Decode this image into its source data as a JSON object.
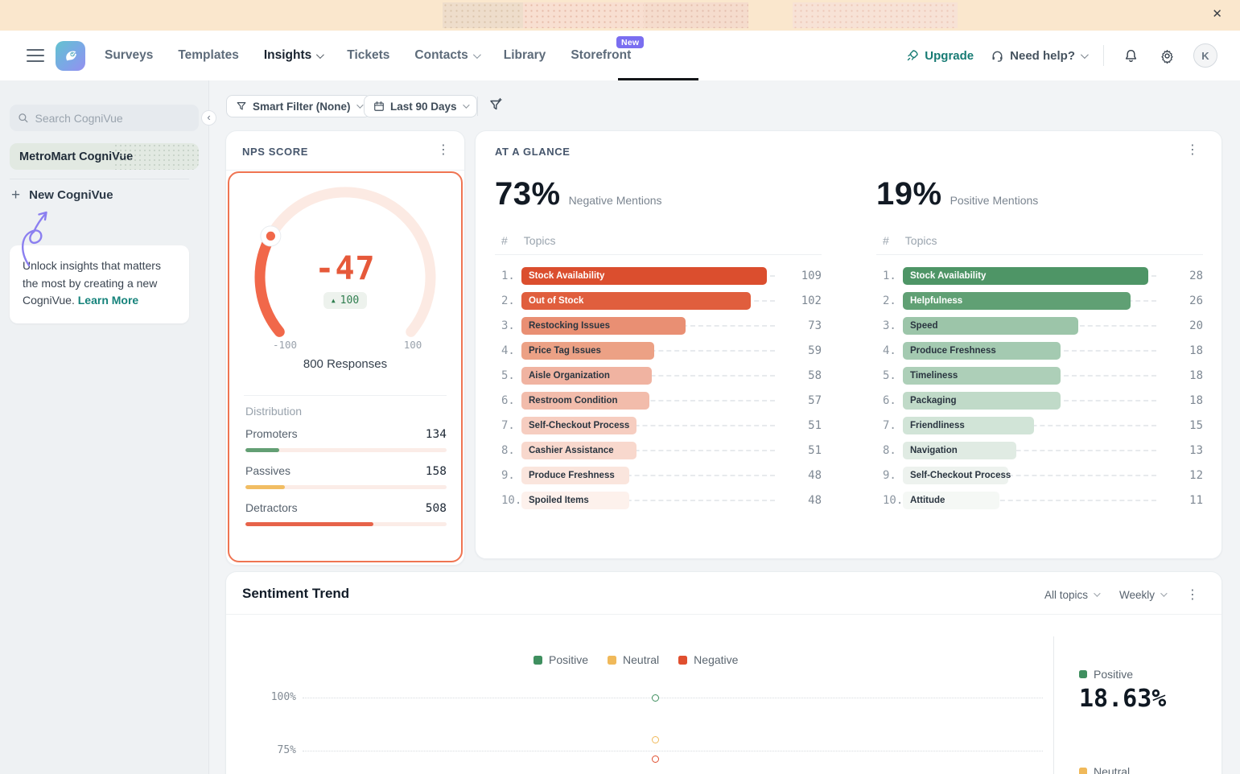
{
  "banner": {
    "dismiss_icon": "✕"
  },
  "icons": {
    "kebab": "⋮",
    "collapse": "‹",
    "plus": "+",
    "up_triangle": "▲"
  },
  "nav": {
    "items": [
      {
        "label": "Surveys"
      },
      {
        "label": "Templates"
      },
      {
        "label": "Insights",
        "active": true,
        "chevron": true
      },
      {
        "label": "Tickets"
      },
      {
        "label": "Contacts",
        "chevron": true
      },
      {
        "label": "Library"
      },
      {
        "label": "Storefront",
        "badge": "New"
      }
    ],
    "upgrade_label": "Upgrade",
    "need_help_label": "Need help?",
    "avatar_initial": "K"
  },
  "sidebar": {
    "search_placeholder": "Search CogniVue",
    "selected_item": "MetroMart CogniVue",
    "new_button": "New CogniVue",
    "promo_text": "Unlock insights that matters the most by creating a new CogniVue. ",
    "promo_link": "Learn More"
  },
  "filters": {
    "smart_filter": "Smart Filter (None)",
    "date_range": "Last 90 Days"
  },
  "nps": {
    "title": "NPS SCORE",
    "score": "-47",
    "change": "100",
    "min_label": "-100",
    "max_label": "100",
    "responses": "800 Responses",
    "distribution_title": "Distribution",
    "gauge_fill_color": "#f1684a",
    "gauge_track_color": "#fceae3",
    "distribution": [
      {
        "label": "Promoters",
        "count": "134",
        "pct": 16.75,
        "color": "#639f74"
      },
      {
        "label": "Passives",
        "count": "158",
        "pct": 19.75,
        "color": "#f1bd63"
      },
      {
        "label": "Detractors",
        "count": "508",
        "pct": 63.5,
        "color": "#e7634a"
      }
    ]
  },
  "glance": {
    "title": "AT A GLANCE",
    "negative": {
      "pct": "73%",
      "label": "Negative Mentions",
      "col_rank": "#",
      "col_topics": "Topics",
      "rows": [
        {
          "rank": "1.",
          "topic": "Stock Availability",
          "count": 109,
          "color": "#db4e2e",
          "light": true
        },
        {
          "rank": "2.",
          "topic": "Out of Stock",
          "count": 102,
          "color": "#e05e3d",
          "light": true
        },
        {
          "rank": "3.",
          "topic": "Restocking Issues",
          "count": 73,
          "color": "#e98f73"
        },
        {
          "rank": "4.",
          "topic": "Price Tag Issues",
          "count": 59,
          "color": "#eca185"
        },
        {
          "rank": "5.",
          "topic": "Aisle Organization",
          "count": 58,
          "color": "#f0b3a1"
        },
        {
          "rank": "6.",
          "topic": "Restroom Condition",
          "count": 57,
          "color": "#f2bcab"
        },
        {
          "rank": "7.",
          "topic": "Self-Checkout Process",
          "count": 51,
          "color": "#f6cdc0"
        },
        {
          "rank": "8.",
          "topic": "Cashier Assistance",
          "count": 51,
          "color": "#f8d8cd"
        },
        {
          "rank": "9.",
          "topic": "Produce Freshness",
          "count": 48,
          "color": "#fae5dd"
        },
        {
          "rank": "10.",
          "topic": "Spoiled Items",
          "count": 48,
          "color": "#fdf1ec"
        }
      ]
    },
    "positive": {
      "pct": "19%",
      "label": "Positive Mentions",
      "col_rank": "#",
      "col_topics": "Topics",
      "rows": [
        {
          "rank": "1.",
          "topic": "Stock Availability",
          "count": 28,
          "color": "#4e9566",
          "light": true
        },
        {
          "rank": "2.",
          "topic": "Helpfulness",
          "count": 26,
          "color": "#60a074",
          "light": true
        },
        {
          "rank": "3.",
          "topic": "Speed",
          "count": 20,
          "color": "#9cc5a9"
        },
        {
          "rank": "4.",
          "topic": "Produce Freshness",
          "count": 18,
          "color": "#a4cab1"
        },
        {
          "rank": "5.",
          "topic": "Timeliness",
          "count": 18,
          "color": "#adcfb8"
        },
        {
          "rank": "6.",
          "topic": "Packaging",
          "count": 18,
          "color": "#c0dac8"
        },
        {
          "rank": "7.",
          "topic": "Friendliness",
          "count": 15,
          "color": "#d1e4d7"
        },
        {
          "rank": "8.",
          "topic": "Navigation",
          "count": 13,
          "color": "#e0ebe3"
        },
        {
          "rank": "9.",
          "topic": "Self-Checkout Process",
          "count": 12,
          "color": "#edf2ee"
        },
        {
          "rank": "10.",
          "topic": "Attitude",
          "count": 11,
          "color": "#f5f8f5"
        }
      ]
    }
  },
  "trend": {
    "title": "Sentiment Trend",
    "topics_filter": "All topics",
    "period_filter": "Weekly",
    "legend": [
      {
        "label": "Positive",
        "color": "#3f8f5f"
      },
      {
        "label": "Neutral",
        "color": "#f0b95a"
      },
      {
        "label": "Negative",
        "color": "#e04f2f"
      }
    ],
    "y_ticks": [
      "100%",
      "75%"
    ],
    "points": [
      {
        "series": "Positive",
        "value": 100,
        "color": "#3f8f5f"
      },
      {
        "series": "Neutral",
        "value": 80,
        "color": "#f0b95a"
      },
      {
        "series": "Negative",
        "value": 71,
        "color": "#e04f2f"
      }
    ],
    "summary": {
      "positive_label": "Positive",
      "positive_color": "#3f8f5f",
      "positive_value": "18.63%",
      "neutral_label": "Neutral",
      "neutral_color": "#f0b95a"
    }
  }
}
